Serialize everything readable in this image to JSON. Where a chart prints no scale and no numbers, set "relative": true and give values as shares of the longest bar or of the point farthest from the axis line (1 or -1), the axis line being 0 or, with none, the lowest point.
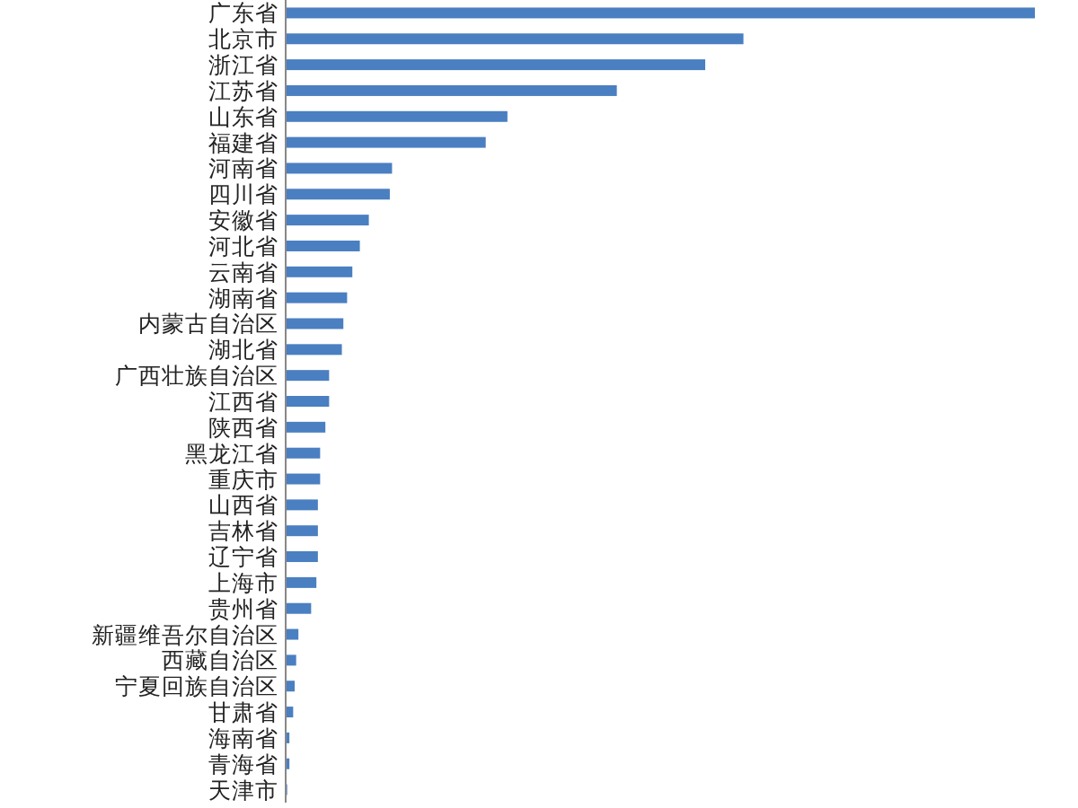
{
  "chart_data": {
    "type": "bar",
    "orientation": "horizontal",
    "relative": true,
    "color": "#4a7fc1",
    "categories": [
      "广东省",
      "北京市",
      "浙江省",
      "江苏省",
      "山东省",
      "福建省",
      "河南省",
      "四川省",
      "安徽省",
      "河北省",
      "云南省",
      "湖南省",
      "内蒙古自治区",
      "湖北省",
      "广西壮族自治区",
      "江西省",
      "陕西省",
      "黑龙江省",
      "重庆市",
      "山西省",
      "吉林省",
      "辽宁省",
      "上海市",
      "贵州省",
      "新疆维吾尔自治区",
      "西藏自治区",
      "宁夏回族自治区",
      "甘肃省",
      "海南省",
      "青海省",
      "天津市"
    ],
    "values": [
      1,
      0.611,
      0.56,
      0.442,
      0.296,
      0.267,
      0.142,
      0.139,
      0.111,
      0.099,
      0.089,
      0.082,
      0.077,
      0.075,
      0.058,
      0.058,
      0.053,
      0.046,
      0.046,
      0.043,
      0.043,
      0.043,
      0.041,
      0.034,
      0.017,
      0.014,
      0.012,
      0.01,
      0.005,
      0.005,
      0.002
    ]
  }
}
